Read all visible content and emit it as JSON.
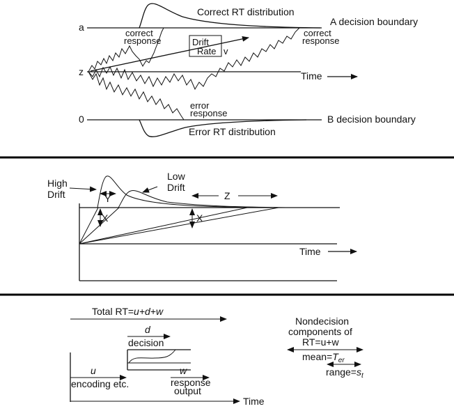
{
  "panel1": {
    "correct_dist": "Correct RT distribution",
    "boundary_a": "A decision boundary",
    "label_a": "a",
    "label_z": "z",
    "label_0": "0",
    "correct_resp_1a": "correct",
    "correct_resp_1b": "response",
    "correct_resp_2a": "correct",
    "correct_resp_2b": "response",
    "drift_1": "Drift",
    "drift_2": "Rate",
    "drift_v": "v",
    "time": "Time",
    "error_resp_a": "error",
    "error_resp_b": "response",
    "boundary_b": "B decision boundary",
    "error_dist": "Error RT distribution"
  },
  "panel2": {
    "high_1": "High",
    "high_2": "Drift",
    "low_1": "Low",
    "low_2": "Drift",
    "z": "Z",
    "y": "Y",
    "x1": "X",
    "x2": "X",
    "time": "Time"
  },
  "panel3": {
    "total_rt": "Total RT=",
    "total_rt_formula": "u+d+w",
    "d": "d",
    "decision": "decision",
    "u": "u",
    "encoding": "encoding etc.",
    "w": "w",
    "response": "response",
    "output": "output",
    "time": "Time",
    "nondec_1": "Nondecision",
    "nondec_2": "components of",
    "nondec_3": "RT=u+w",
    "mean": "mean=",
    "ter": "T",
    "ter_sub": "er",
    "range": "range=",
    "st": "s",
    "st_sub": "t"
  }
}
